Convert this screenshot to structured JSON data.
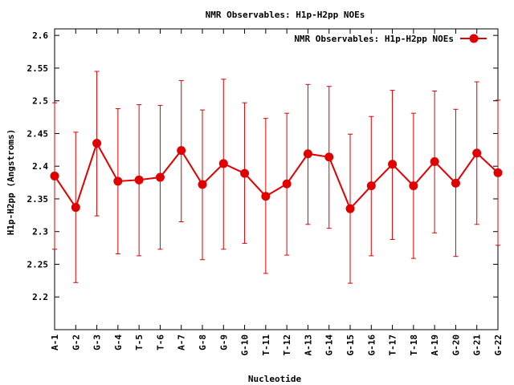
{
  "chart_data": {
    "type": "line",
    "title": "NMR Observables: H1p-H2pp NOEs",
    "xlabel": "Nucleotide",
    "ylabel": "H1p-H2pp (Angstroms)",
    "ylim": [
      2.15,
      2.61
    ],
    "y_ticks": [
      2.2,
      2.25,
      2.3,
      2.35,
      2.4,
      2.45,
      2.5,
      2.55,
      2.6
    ],
    "y_tick_labels": [
      "2.2",
      "2.25",
      "2.3",
      "2.35",
      "2.4",
      "2.45",
      "2.5",
      "2.55",
      "2.6"
    ],
    "grid": false,
    "legend_position": "top-right",
    "categories": [
      "A-1",
      "G-2",
      "G-3",
      "G-4",
      "T-5",
      "T-6",
      "A-7",
      "G-8",
      "G-9",
      "G-10",
      "T-11",
      "T-12",
      "A-13",
      "G-14",
      "G-15",
      "G-16",
      "T-17",
      "T-18",
      "A-19",
      "G-20",
      "G-21",
      "G-22"
    ],
    "series": [
      {
        "name": "NMR Observables: H1p-H2pp NOEs",
        "color": "#e00000",
        "marker": "circle",
        "values": [
          2.385,
          2.337,
          2.435,
          2.377,
          2.379,
          2.383,
          2.424,
          2.372,
          2.404,
          2.389,
          2.354,
          2.373,
          2.419,
          2.414,
          2.335,
          2.37,
          2.403,
          2.37,
          2.407,
          2.374,
          2.42,
          2.39
        ],
        "error_lower": [
          2.273,
          2.222,
          2.324,
          2.266,
          2.263,
          2.273,
          2.315,
          2.257,
          2.273,
          2.282,
          2.236,
          2.264,
          2.311,
          2.305,
          2.221,
          2.263,
          2.288,
          2.259,
          2.298,
          2.262,
          2.311,
          2.279
        ],
        "error_upper": [
          2.497,
          2.452,
          2.545,
          2.488,
          2.494,
          2.493,
          2.531,
          2.486,
          2.533,
          2.497,
          2.473,
          2.481,
          2.525,
          2.522,
          2.449,
          2.476,
          2.516,
          2.481,
          2.515,
          2.487,
          2.529,
          2.501
        ]
      }
    ]
  }
}
